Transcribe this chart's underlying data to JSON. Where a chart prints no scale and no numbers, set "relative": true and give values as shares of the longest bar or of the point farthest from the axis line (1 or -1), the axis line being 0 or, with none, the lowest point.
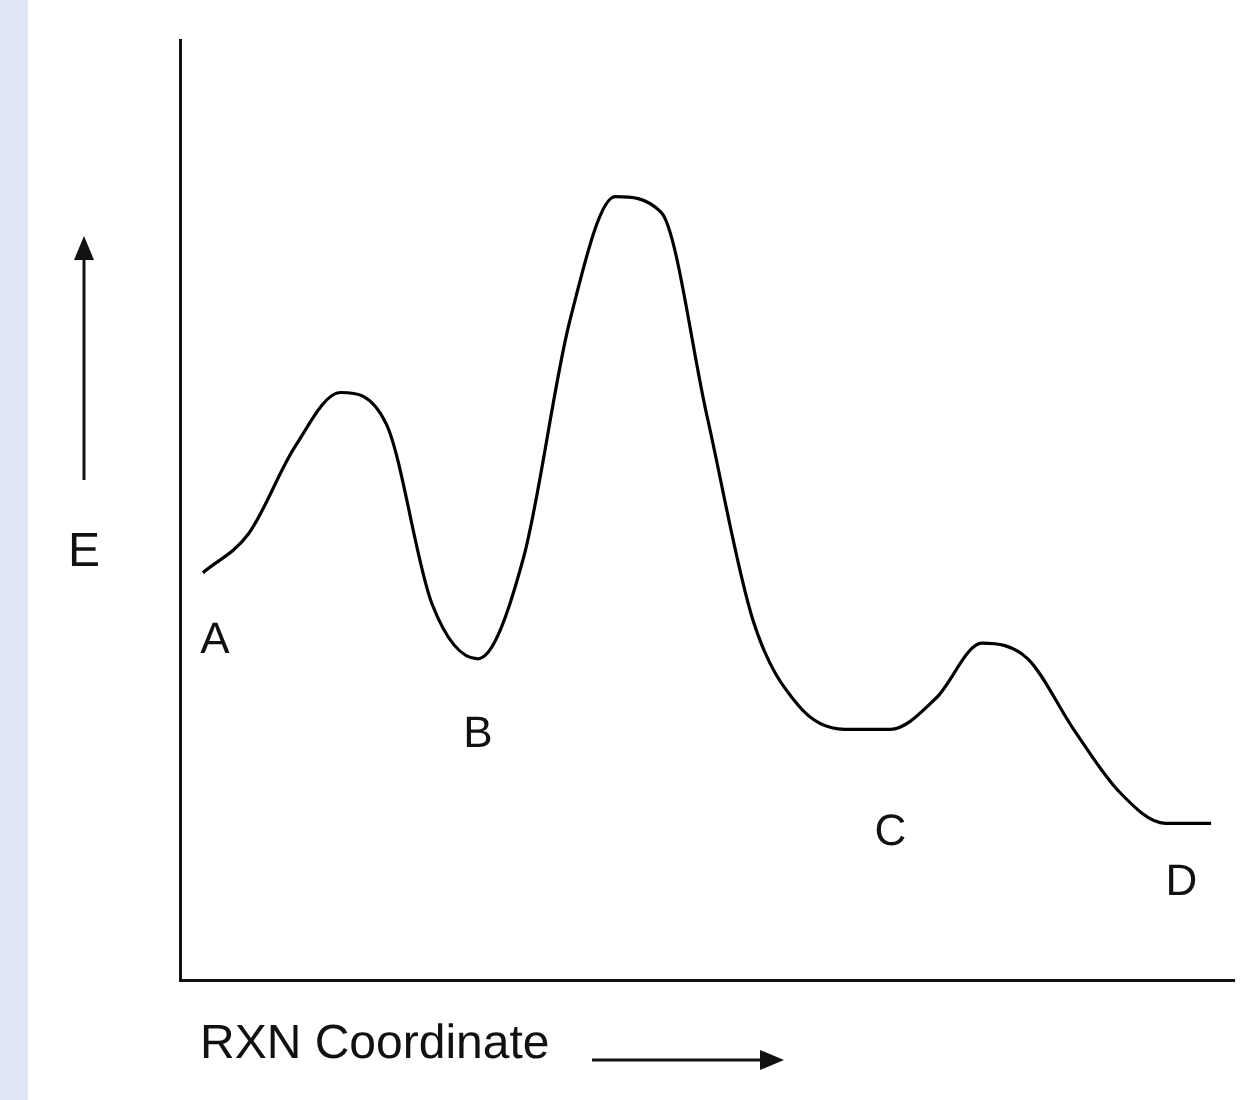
{
  "chart_data": {
    "type": "line",
    "relative": true,
    "xlabel": "RXN Coordinate",
    "ylabel": "E",
    "categories": [
      null,
      null,
      null,
      null,
      null,
      null,
      null,
      null,
      null,
      null,
      null,
      null,
      null,
      null,
      null,
      null,
      null,
      null,
      null,
      null,
      null,
      null,
      null
    ],
    "series": [
      {
        "color": "#000000",
        "values": [
          0.52,
          0.57,
          0.68,
          0.75,
          0.71,
          0.48,
          0.41,
          0.54,
          0.84,
          1,
          0.98,
          0.72,
          0.46,
          0.35,
          0.32,
          0.32,
          0.36,
          0.43,
          0.41,
          0.32,
          0.24,
          0.2,
          0.2
        ]
      }
    ],
    "annotations": [
      "A",
      "B",
      "C",
      "D"
    ],
    "marker": "none",
    "line_style": "solid",
    "grid": false,
    "legend": false
  }
}
